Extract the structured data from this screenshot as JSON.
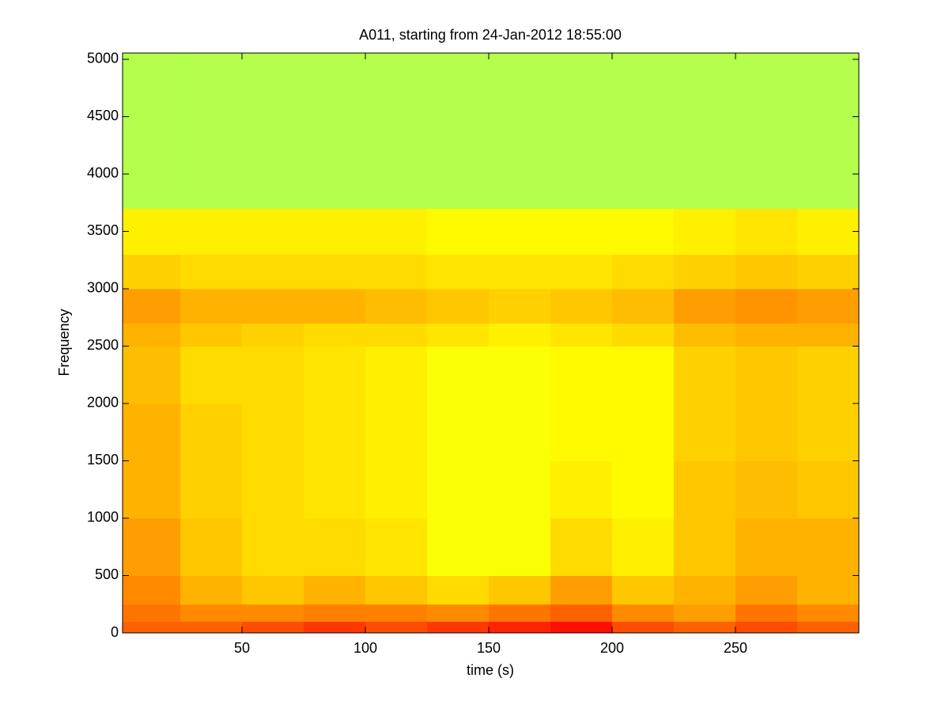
{
  "chart_data": {
    "type": "spectrogram",
    "title": "A011, starting from 24-Jan-2012 18:55:00",
    "xlabel": "time (s)",
    "ylabel": "Frequency",
    "xlim": [
      1.6,
      300
    ],
    "ylim": [
      0,
      5055
    ],
    "xticks": [
      50,
      100,
      150,
      200,
      250
    ],
    "yticks": [
      0,
      500,
      1000,
      1500,
      2000,
      2500,
      3000,
      3500,
      4000,
      4500,
      5000
    ],
    "colormap": "jet",
    "clim": [
      0,
      1
    ],
    "x_bins": [
      1.6,
      25,
      50,
      75,
      100,
      125,
      150,
      175,
      200,
      225,
      250,
      275,
      300
    ],
    "y_bins": [
      0,
      100,
      250,
      500,
      1000,
      1500,
      2000,
      2500,
      2700,
      3000,
      3300,
      3700,
      5055
    ],
    "z": [
      [
        0.78,
        0.78,
        0.8,
        0.82,
        0.8,
        0.82,
        0.84,
        0.86,
        0.8,
        0.78,
        0.8,
        0.78
      ],
      [
        0.76,
        0.74,
        0.74,
        0.75,
        0.75,
        0.74,
        0.76,
        0.78,
        0.74,
        0.72,
        0.76,
        0.74
      ],
      [
        0.74,
        0.7,
        0.68,
        0.7,
        0.68,
        0.66,
        0.68,
        0.72,
        0.68,
        0.7,
        0.72,
        0.7
      ],
      [
        0.72,
        0.68,
        0.66,
        0.66,
        0.65,
        0.62,
        0.62,
        0.66,
        0.64,
        0.68,
        0.7,
        0.7
      ],
      [
        0.7,
        0.67,
        0.66,
        0.65,
        0.64,
        0.62,
        0.62,
        0.64,
        0.63,
        0.68,
        0.69,
        0.68
      ],
      [
        0.7,
        0.67,
        0.66,
        0.65,
        0.64,
        0.62,
        0.62,
        0.63,
        0.63,
        0.67,
        0.68,
        0.67
      ],
      [
        0.69,
        0.66,
        0.66,
        0.65,
        0.64,
        0.62,
        0.62,
        0.63,
        0.63,
        0.67,
        0.68,
        0.67
      ],
      [
        0.7,
        0.68,
        0.67,
        0.66,
        0.66,
        0.65,
        0.64,
        0.65,
        0.66,
        0.69,
        0.7,
        0.7
      ],
      [
        0.72,
        0.7,
        0.7,
        0.7,
        0.69,
        0.68,
        0.67,
        0.68,
        0.69,
        0.72,
        0.73,
        0.72
      ],
      [
        0.67,
        0.66,
        0.66,
        0.66,
        0.66,
        0.65,
        0.65,
        0.65,
        0.66,
        0.67,
        0.68,
        0.67
      ],
      [
        0.64,
        0.64,
        0.64,
        0.64,
        0.64,
        0.63,
        0.63,
        0.63,
        0.63,
        0.64,
        0.65,
        0.64
      ],
      [
        0.55,
        0.55,
        0.55,
        0.55,
        0.55,
        0.55,
        0.55,
        0.55,
        0.55,
        0.55,
        0.55,
        0.55
      ]
    ]
  }
}
